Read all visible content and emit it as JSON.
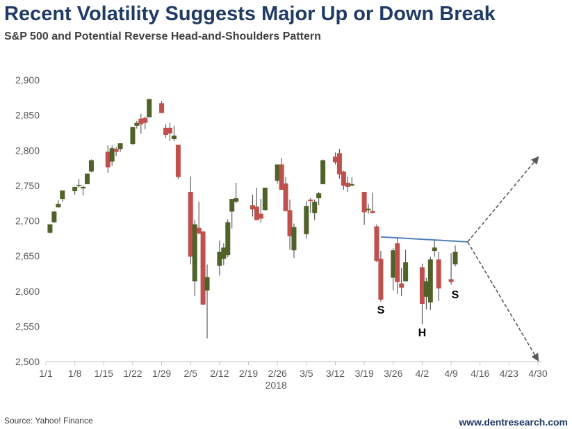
{
  "header": {
    "title": "Recent Volatility Suggests Major Up or Down Break",
    "subtitle": "S&P 500 and Potential Reverse Head-and-Shoulders Pattern"
  },
  "footer": {
    "source": "Source: Yahoo! Finance",
    "site": "www.dentresearch.com"
  },
  "chart_data": {
    "type": "candlestick",
    "title": "Recent Volatility Suggests Major Up or Down Break",
    "subtitle": "S&P 500 and Potential Reverse Head-and-Shoulders Pattern",
    "xlabel": "2018",
    "ylabel": "",
    "ylim": [
      2500,
      2900
    ],
    "yticks": [
      "2,500",
      "2,550",
      "2,600",
      "2,650",
      "2,700",
      "2,750",
      "2,800",
      "2,850",
      "2,900"
    ],
    "ytick_values": [
      2500,
      2550,
      2600,
      2650,
      2700,
      2750,
      2800,
      2850,
      2900
    ],
    "xticks": [
      "1/1",
      "1/8",
      "1/15",
      "1/22",
      "1/29",
      "2/5",
      "2/12",
      "2/19",
      "2/26",
      "3/5",
      "3/12",
      "3/19",
      "3/26",
      "4/2",
      "4/9",
      "4/16",
      "4/23",
      "4/30"
    ],
    "xlim": [
      "1/1",
      "4/30"
    ],
    "colors": {
      "up": "#4f6228",
      "down": "#c0504d",
      "neckline": "#4f81bd",
      "arrow": "#595959"
    },
    "candles": [
      [
        "1/2",
        2683,
        2695,
        2682,
        2695
      ],
      [
        "1/3",
        2698,
        2714,
        2697,
        2713
      ],
      [
        "1/4",
        2719,
        2729,
        2719,
        2724
      ],
      [
        "1/5",
        2731,
        2743,
        2727,
        2743
      ],
      [
        "1/8",
        2742,
        2748,
        2737,
        2748
      ],
      [
        "1/9",
        2751,
        2759,
        2747,
        2751
      ],
      [
        "1/10",
        2746,
        2750,
        2736,
        2748
      ],
      [
        "1/11",
        2752,
        2767,
        2752,
        2767
      ],
      [
        "1/12",
        2770,
        2787,
        2769,
        2786
      ],
      [
        "1/16",
        2798,
        2807,
        2768,
        2776
      ],
      [
        "1/17",
        2784,
        2807,
        2778,
        2803
      ],
      [
        "1/18",
        2802,
        2805,
        2792,
        2798
      ],
      [
        "1/19",
        2802,
        2810,
        2798,
        2810
      ],
      [
        "1/22",
        2809,
        2833,
        2808,
        2833
      ],
      [
        "1/23",
        2835,
        2842,
        2831,
        2839
      ],
      [
        "1/24",
        2845,
        2852,
        2824,
        2837
      ],
      [
        "1/25",
        2846,
        2848,
        2830,
        2839
      ],
      [
        "1/26",
        2847,
        2873,
        2847,
        2873
      ],
      [
        "1/29",
        2867,
        2870,
        2853,
        2853
      ],
      [
        "1/30",
        2832,
        2837,
        2818,
        2822
      ],
      [
        "1/31",
        2832,
        2839,
        2813,
        2824
      ],
      [
        "2/1",
        2816,
        2835,
        2813,
        2821
      ],
      [
        "2/2",
        2808,
        2808,
        2759,
        2762
      ],
      [
        "2/5",
        2741,
        2763,
        2638,
        2649
      ],
      [
        "2/6",
        2614,
        2701,
        2593,
        2695
      ],
      [
        "2/7",
        2690,
        2727,
        2681,
        2682
      ],
      [
        "2/8",
        2685,
        2685,
        2580,
        2581
      ],
      [
        "2/9",
        2601,
        2638,
        2533,
        2620
      ],
      [
        "2/12",
        2636,
        2672,
        2622,
        2656
      ],
      [
        "2/13",
        2646,
        2668,
        2637,
        2662
      ],
      [
        "2/14",
        2651,
        2702,
        2648,
        2698
      ],
      [
        "2/15",
        2713,
        2731,
        2689,
        2731
      ],
      [
        "2/16",
        2727,
        2754,
        2725,
        2732
      ],
      [
        "2/20",
        2722,
        2737,
        2706,
        2716
      ],
      [
        "2/21",
        2720,
        2747,
        2701,
        2701
      ],
      [
        "2/22",
        2710,
        2731,
        2697,
        2703
      ],
      [
        "2/23",
        2715,
        2747,
        2715,
        2747
      ],
      [
        "2/26",
        2757,
        2780,
        2753,
        2780
      ],
      [
        "2/27",
        2780,
        2789,
        2744,
        2744
      ],
      [
        "2/28",
        2753,
        2762,
        2713,
        2714
      ],
      [
        "3/1",
        2715,
        2730,
        2659,
        2678
      ],
      [
        "3/2",
        2658,
        2696,
        2647,
        2691
      ],
      [
        "3/5",
        2681,
        2728,
        2675,
        2721
      ],
      [
        "3/6",
        2730,
        2732,
        2711,
        2728
      ],
      [
        "3/7",
        2711,
        2730,
        2701,
        2727
      ],
      [
        "3/8",
        2732,
        2741,
        2722,
        2739
      ],
      [
        "3/9",
        2752,
        2787,
        2752,
        2786
      ],
      [
        "3/12",
        2791,
        2797,
        2780,
        2783
      ],
      [
        "3/13",
        2796,
        2802,
        2760,
        2766
      ],
      [
        "3/14",
        2770,
        2771,
        2744,
        2750
      ],
      [
        "3/15",
        2754,
        2763,
        2741,
        2748
      ],
      [
        "3/16",
        2750,
        2762,
        2749,
        2752
      ],
      [
        "3/19",
        2741,
        2741,
        2694,
        2712
      ],
      [
        "3/20",
        2715,
        2724,
        2710,
        2717
      ],
      [
        "3/21",
        2714,
        2740,
        2711,
        2711
      ],
      [
        "3/22",
        2692,
        2695,
        2641,
        2643
      ],
      [
        "3/23",
        2646,
        2657,
        2585,
        2588
      ],
      [
        "3/26",
        2619,
        2661,
        2601,
        2658
      ],
      [
        "3/27",
        2668,
        2675,
        2596,
        2613
      ],
      [
        "3/28",
        2611,
        2633,
        2593,
        2605
      ],
      [
        "3/29",
        2614,
        2659,
        2614,
        2641
      ],
      [
        "4/2",
        2634,
        2639,
        2553,
        2582
      ],
      [
        "4/3",
        2592,
        2619,
        2574,
        2614
      ],
      [
        "4/4",
        2584,
        2649,
        2573,
        2645
      ],
      [
        "4/5",
        2657,
        2672,
        2649,
        2662
      ],
      [
        "4/6",
        2645,
        2656,
        2586,
        2604
      ],
      [
        "4/9",
        2617,
        2654,
        2609,
        2613
      ],
      [
        "4/10",
        2638,
        2665,
        2635,
        2656
      ]
    ],
    "neckline": [
      [
        "3/23",
        2677
      ],
      [
        "4/13",
        2670
      ]
    ],
    "projections": [
      {
        "from": [
          "4/13",
          2670
        ],
        "to": [
          "4/30",
          2790
        ]
      },
      {
        "from": [
          "4/13",
          2670
        ],
        "to": [
          "4/30",
          2502
        ]
      }
    ],
    "annotations": [
      {
        "text": "S",
        "date": "3/23",
        "value": 2568
      },
      {
        "text": "H",
        "date": "4/2",
        "value": 2536
      },
      {
        "text": "S",
        "date": "4/10",
        "value": 2590
      }
    ]
  }
}
